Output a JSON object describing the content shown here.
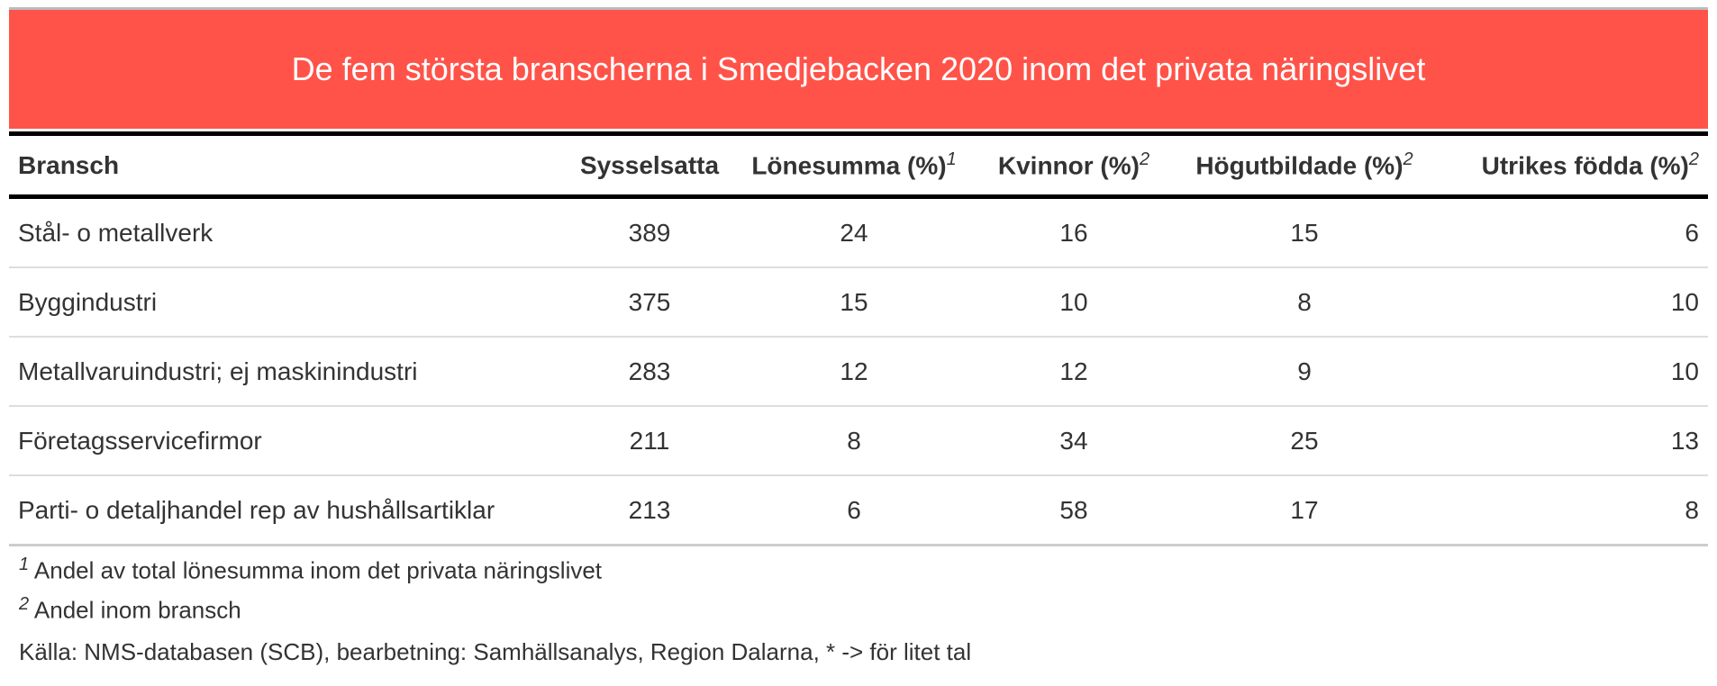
{
  "title": "De fem största branscherna i Smedjebacken 2020 inom det privata näringslivet",
  "table": {
    "columns": [
      {
        "label": "Bransch"
      },
      {
        "label": "Sysselsatta"
      },
      {
        "label": "Lönesumma (%)",
        "note": "1"
      },
      {
        "label": "Kvinnor (%)",
        "note": "2"
      },
      {
        "label": "Högutbildade (%)",
        "note": "2"
      },
      {
        "label": "Utrikes födda (%)",
        "note": "2"
      }
    ],
    "rows": [
      [
        "Stål- o metallverk",
        389,
        24,
        16,
        15,
        6
      ],
      [
        "Byggindustri",
        375,
        15,
        10,
        8,
        10
      ],
      [
        "Metallvaruindustri; ej maskinindustri",
        283,
        12,
        12,
        9,
        10
      ],
      [
        "Företagsservicefirmor",
        211,
        8,
        34,
        25,
        13
      ],
      [
        "Parti- o detaljhandel rep av hushållsartiklar",
        213,
        6,
        58,
        17,
        8
      ]
    ]
  },
  "footnotes": [
    {
      "marker": "1",
      "text": "Andel av total lönesumma inom det privata näringslivet"
    },
    {
      "marker": "2",
      "text": "Andel inom bransch"
    }
  ],
  "source": "Källa: NMS-databasen (SCB), bearbetning: Samhällsanalys, Region Dalarna, * -> för litet tal"
}
